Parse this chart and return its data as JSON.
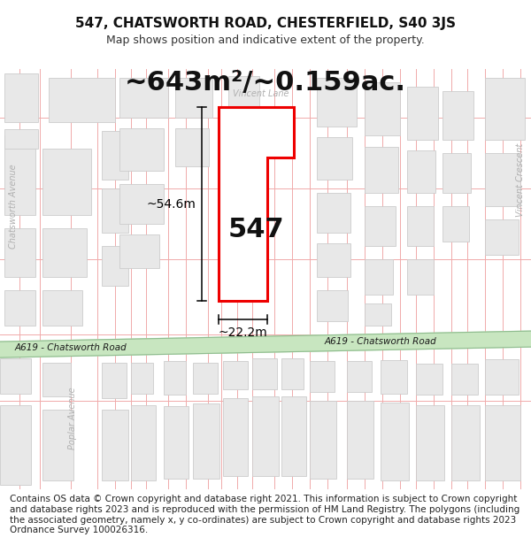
{
  "title": "547, CHATSWORTH ROAD, CHESTERFIELD, S40 3JS",
  "subtitle": "Map shows position and indicative extent of the property.",
  "area_text": "~643m²/~0.159ac.",
  "property_number": "547",
  "dim_height": "~54.6m",
  "dim_width": "~22.2m",
  "road_label_right": "A619 - Chatsworth Road",
  "road_label_left": "A619 - Chatsworth Road",
  "street_vincent_lane": "Vincent Lane",
  "street_chatsworth_ave": "Chatsworth Avenue",
  "street_poplar_ave": "Poplar Avenue",
  "street_vincent_cres": "Vincent Crescent",
  "copyright_text": "Contains OS data © Crown copyright and database right 2021. This information is subject to Crown copyright and database rights 2023 and is reproduced with the permission of HM Land Registry. The polygons (including the associated geometry, namely x, y co-ordinates) are subject to Crown copyright and database rights 2023 Ordnance Survey 100026316.",
  "bg_color": "#ffffff",
  "map_bg": "#ffffff",
  "road_fill": "#c8e6c0",
  "road_edge": "#8fbc8f",
  "street_line_color": "#f0aaaa",
  "block_fill": "#e8e8e8",
  "block_edge": "#cccccc",
  "property_fill": "#ffffff",
  "property_stroke": "#ee0000",
  "text_dark": "#111111",
  "text_gray": "#aaaaaa",
  "dim_color": "#000000",
  "title_fontsize": 11,
  "subtitle_fontsize": 9,
  "area_fontsize": 22,
  "number_fontsize": 22,
  "dim_fontsize": 10,
  "copyright_fontsize": 7.5,
  "street_fontsize": 7
}
